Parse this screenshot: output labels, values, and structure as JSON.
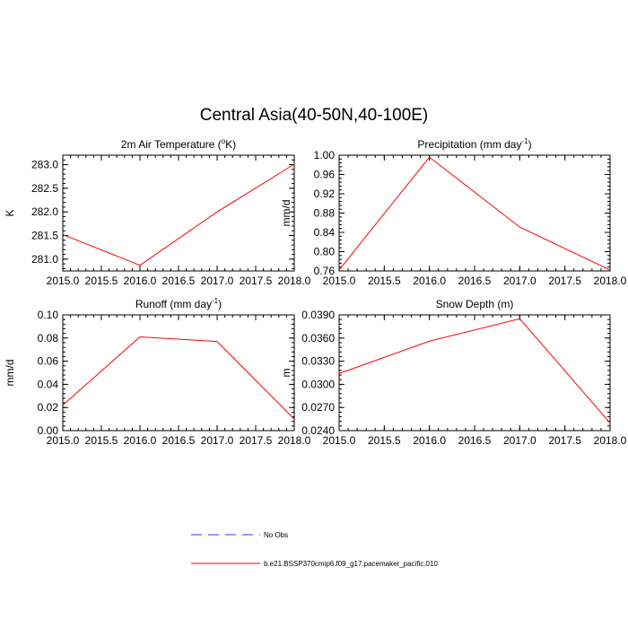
{
  "title": "Central Asia(40-50N,40-100E)",
  "colors": {
    "model": "#ff0000",
    "obs": "#3333ff",
    "axis": "#000000"
  },
  "legend": {
    "entries": [
      {
        "label": "No Obs",
        "color": "#3333ff",
        "style": "dashed"
      },
      {
        "label": "b.e21.BSSP370cmip6.f09_g17.pacemaker_pacific.010",
        "color": "#ff0000",
        "style": "solid"
      }
    ]
  },
  "chart_data": [
    {
      "type": "line",
      "title": "2m Air Temperature (",
      "title_sup": "o",
      "title_tail": "K)",
      "ylabel": "K",
      "x": [
        2015.0,
        2016.0,
        2017.0,
        2018.0
      ],
      "series": [
        {
          "values": [
            281.52,
            280.87,
            282.0,
            283.01
          ]
        }
      ],
      "xlim": [
        2015.0,
        2018.0
      ],
      "ylim": [
        280.75,
        283.2
      ],
      "xticks": [
        "2015.0",
        "2015.5",
        "2016.0",
        "2016.5",
        "2017.0",
        "2017.5",
        "2018.0"
      ],
      "yticks": [
        "281.0",
        "281.5",
        "282.0",
        "282.5",
        "283.0"
      ]
    },
    {
      "type": "line",
      "title": "Precipitation (mm day",
      "title_sup": "-1",
      "title_tail": ")",
      "ylabel": "mm/d",
      "x": [
        2015.0,
        2016.0,
        2017.0,
        2018.0
      ],
      "series": [
        {
          "values": [
            0.762,
            0.996,
            0.851,
            0.762
          ]
        }
      ],
      "xlim": [
        2015.0,
        2018.0
      ],
      "ylim": [
        0.76,
        1.0
      ],
      "xticks": [
        "2015.0",
        "2015.5",
        "2016.0",
        "2016.5",
        "2017.0",
        "2017.5",
        "2018.0"
      ],
      "yticks": [
        "0.76",
        "0.80",
        "0.84",
        "0.88",
        "0.92",
        "0.96",
        "1.00"
      ]
    },
    {
      "type": "line",
      "title": "Runoff (mm day",
      "title_sup": "-1",
      "title_tail": ")",
      "ylabel": "mm/d",
      "x": [
        2015.0,
        2016.0,
        2017.0,
        2018.0
      ],
      "series": [
        {
          "values": [
            0.022,
            0.081,
            0.077,
            0.01
          ]
        }
      ],
      "xlim": [
        2015.0,
        2018.0
      ],
      "ylim": [
        0.0,
        0.1
      ],
      "xticks": [
        "2015.0",
        "2015.5",
        "2016.0",
        "2016.5",
        "2017.0",
        "2017.5",
        "2018.0"
      ],
      "yticks": [
        "0.00",
        "0.02",
        "0.04",
        "0.06",
        "0.08",
        "0.10"
      ]
    },
    {
      "type": "line",
      "title": "Snow Depth (m)",
      "title_sup": "",
      "title_tail": "",
      "ylabel": "m",
      "x": [
        2015.0,
        2016.0,
        2017.0,
        2018.0
      ],
      "series": [
        {
          "values": [
            0.0314,
            0.0356,
            0.0385,
            0.025
          ]
        }
      ],
      "xlim": [
        2015.0,
        2018.0
      ],
      "ylim": [
        0.024,
        0.039
      ],
      "xticks": [
        "2015.0",
        "2015.5",
        "2016.0",
        "2016.5",
        "2017.0",
        "2017.5",
        "2018.0"
      ],
      "yticks": [
        "0.0240",
        "0.0270",
        "0.0300",
        "0.0330",
        "0.0360",
        "0.0390"
      ]
    }
  ]
}
